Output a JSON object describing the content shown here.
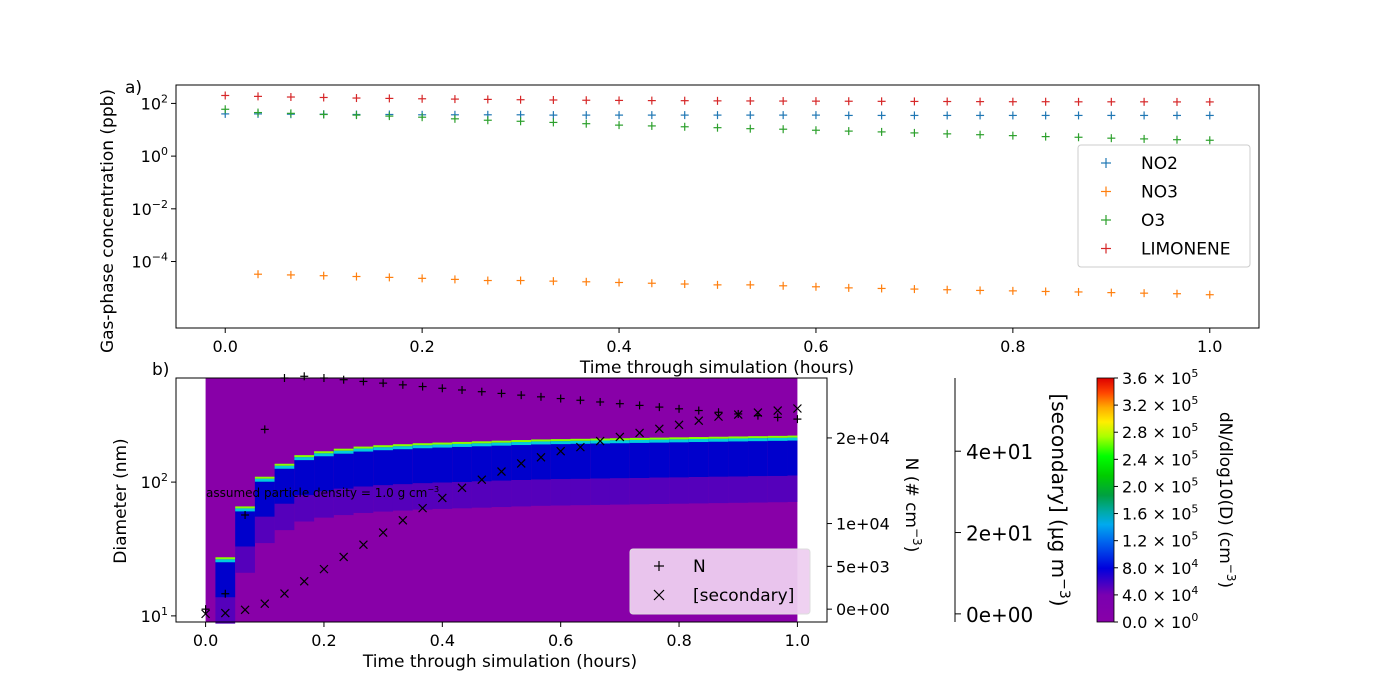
{
  "chart_data": [
    {
      "type": "scatter",
      "panel_label": "a)",
      "xlabel": "Time through simulation (hours)",
      "ylabel": "Gas-phase concentration (ppb)",
      "yscale": "log",
      "xlim": [
        -0.05,
        1.05
      ],
      "ylim": [
        3e-07,
        500
      ],
      "xticks": [
        0.0,
        0.2,
        0.4,
        0.6,
        0.8,
        1.0
      ],
      "xtick_labels": [
        "0.0",
        "0.2",
        "0.4",
        "0.6",
        "0.8",
        "1.0"
      ],
      "yticks": [
        0.0001,
        0.01,
        1,
        100
      ],
      "ytick_bases": [
        "10",
        "10",
        "10",
        "10"
      ],
      "ytick_exps": [
        "−4",
        "−2",
        "0",
        "2"
      ],
      "legend_position": "right",
      "x": [
        0.0,
        0.0333,
        0.0667,
        0.1,
        0.1333,
        0.1667,
        0.2,
        0.2333,
        0.2667,
        0.3,
        0.3333,
        0.3667,
        0.4,
        0.4333,
        0.4667,
        0.5,
        0.5333,
        0.5667,
        0.6,
        0.6333,
        0.6667,
        0.7,
        0.7333,
        0.7667,
        0.8,
        0.8333,
        0.8667,
        0.9,
        0.9333,
        0.9667,
        1.0
      ],
      "series": [
        {
          "name": "NO2",
          "color": "#1f77b4",
          "values": [
            40,
            40,
            39,
            39,
            38,
            38,
            37,
            37,
            37,
            37,
            36,
            36,
            36,
            36,
            36,
            36,
            36,
            36,
            36,
            35,
            35,
            35,
            35,
            35,
            35,
            35,
            35,
            35,
            35,
            35,
            35
          ]
        },
        {
          "name": "NO3",
          "color": "#ff7f0e",
          "values": [
            null,
            3.3e-05,
            3.1e-05,
            2.9e-05,
            2.7e-05,
            2.5e-05,
            2.3e-05,
            2.1e-05,
            1.9e-05,
            1.9e-05,
            1.8e-05,
            1.7e-05,
            1.6e-05,
            1.5e-05,
            1.4e-05,
            1.3e-05,
            1.3e-05,
            1.2e-05,
            1.1e-05,
            1e-05,
            9.5e-06,
            9e-06,
            8.5e-06,
            8e-06,
            7.7e-06,
            7.3e-06,
            7e-06,
            6.6e-06,
            6.3e-06,
            6e-06,
            5.5e-06
          ]
        },
        {
          "name": "O3",
          "color": "#2ca02c",
          "values": [
            60,
            45,
            42,
            38,
            36,
            33,
            30,
            26,
            23,
            21,
            19,
            17,
            15,
            14,
            13,
            12,
            11,
            10.5,
            9.6,
            8.9,
            8.3,
            7.6,
            7.0,
            6.5,
            6.0,
            5.5,
            5.2,
            4.8,
            4.5,
            4.2,
            4.0
          ]
        },
        {
          "name": "LIMONENE",
          "color": "#d62728",
          "values": [
            200,
            185,
            175,
            168,
            160,
            155,
            150,
            146,
            142,
            138,
            135,
            132,
            130,
            128,
            127,
            125,
            124,
            123,
            122,
            121,
            120,
            119,
            118,
            117,
            116,
            116,
            115,
            115,
            115,
            114,
            114
          ]
        }
      ]
    },
    {
      "type": "heatmap",
      "panel_label": "b)",
      "xlabel": "Time through simulation (hours)",
      "ylabel": "Diameter (nm)",
      "yscale": "log",
      "xlim": [
        -0.05,
        1.05
      ],
      "ylim": [
        9,
        600
      ],
      "xticks": [
        0.0,
        0.2,
        0.4,
        0.6,
        0.8,
        1.0
      ],
      "xtick_labels": [
        "0.0",
        "0.2",
        "0.4",
        "0.6",
        "0.8",
        "1.0"
      ],
      "yticks": [
        10,
        100
      ],
      "ytick_bases": [
        "10",
        "10"
      ],
      "ytick_exps": [
        "1",
        "2"
      ],
      "annotation": "assumed particle density = 1.0 g cm",
      "annotation_exp": "−3",
      "mode_diameter": [
        null,
        25,
        60,
        100,
        125,
        145,
        155,
        162,
        168,
        172,
        175,
        178,
        180,
        182,
        184,
        186,
        188,
        190,
        191,
        192,
        193,
        194,
        195,
        196,
        197,
        198,
        199,
        200,
        201,
        202,
        203
      ],
      "right_axis_N": {
        "label": "N (# cm",
        "label_exp": "−3",
        "lim": [
          -1500,
          27000
        ],
        "ticks": [
          0,
          5000,
          10000,
          20000
        ],
        "tick_labels": [
          "0e+00",
          "5e+03",
          "1e+04",
          "2e+04"
        ],
        "series_name": "N",
        "marker": "+",
        "values": [
          0,
          1800,
          11000,
          21000,
          27000,
          27200,
          27000,
          26800,
          26600,
          26400,
          26200,
          26000,
          25800,
          25600,
          25400,
          25200,
          25000,
          24800,
          24600,
          24400,
          24200,
          24000,
          23800,
          23600,
          23400,
          23200,
          23000,
          22800,
          22600,
          22400,
          22200
        ]
      },
      "right_axis_secondary": {
        "label": "[secondary] (µg m",
        "label_exp": "−3",
        "lim": [
          -2,
          58
        ],
        "ticks": [
          0,
          20,
          40
        ],
        "tick_labels": [
          "0e+00",
          "2e+01",
          "4e+01"
        ],
        "series_name": "[secondary]",
        "marker": "x",
        "values": [
          0,
          0.2,
          1,
          2.5,
          5,
          8,
          11,
          14,
          17,
          20,
          23,
          26,
          28.5,
          31,
          33,
          35,
          37,
          38.5,
          40,
          41,
          42.5,
          43.5,
          44.5,
          45.5,
          46.5,
          47.5,
          48.5,
          49,
          49.5,
          50,
          50.5
        ]
      },
      "colorbar": {
        "label": "dN/dlog10(D) (cm",
        "label_exp": "−3",
        "colormap": "nipy_spectral",
        "lim": [
          0,
          360000
        ],
        "ticks": [
          0,
          40000,
          80000,
          120000,
          160000,
          200000,
          240000,
          280000,
          320000,
          360000
        ],
        "tick_mant": [
          "0.0",
          "4.0",
          "8.0",
          "1.2",
          "1.6",
          "2.0",
          "2.4",
          "2.8",
          "3.2",
          "3.6"
        ],
        "tick_exp": [
          "0",
          "4",
          "4",
          "5",
          "5",
          "5",
          "5",
          "5",
          "5",
          "5"
        ]
      }
    }
  ]
}
